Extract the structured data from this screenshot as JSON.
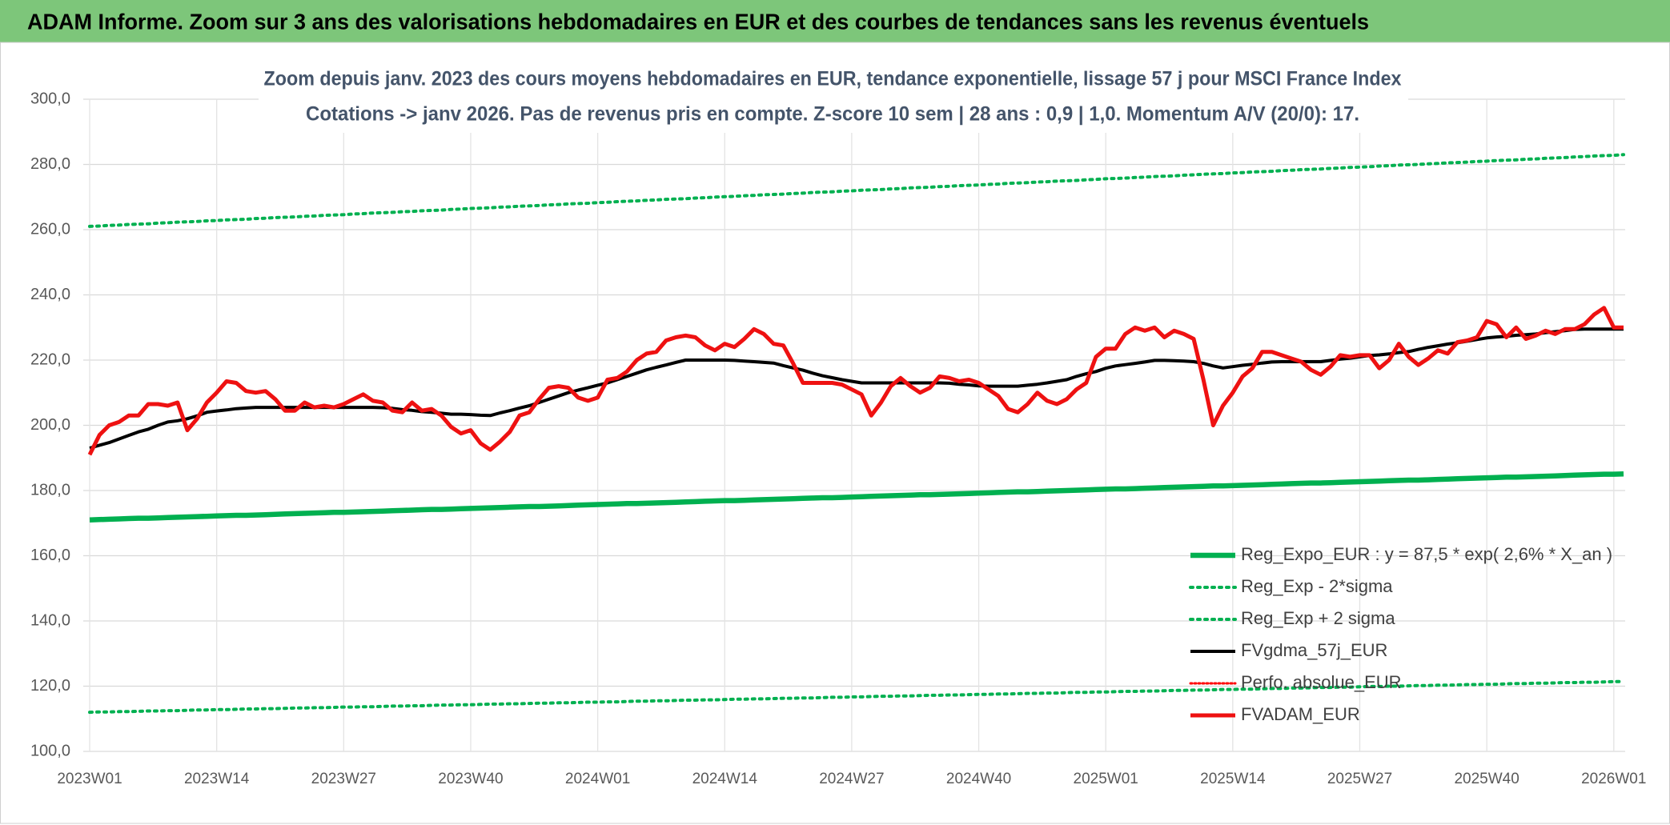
{
  "chart_data": {
    "type": "line",
    "title": "ADAM Informe. Zoom sur 3 ans des valorisations hebdomadaires en EUR et des courbes de tendances sans les revenus éventuels",
    "subtitle": [
      "Zoom depuis janv. 2023 des cours moyens hebdomadaires en EUR, tendance exponentielle, lissage 57 j pour MSCI France Index",
      "Cotations -> janv 2026. Pas de revenus pris en compte. Z-score 10 sem | 28 ans : 0,9 | 1,0. Momentum A/V (20/0): 17."
    ],
    "categories": [
      "2023W01",
      null,
      null,
      null,
      null,
      null,
      null,
      null,
      null,
      null,
      null,
      null,
      null,
      "2023W14",
      null,
      null,
      null,
      null,
      null,
      null,
      null,
      null,
      null,
      null,
      null,
      null,
      "2023W27",
      null,
      null,
      null,
      null,
      null,
      null,
      null,
      null,
      null,
      null,
      null,
      null,
      "2023W40",
      null,
      null,
      null,
      null,
      null,
      null,
      null,
      null,
      null,
      null,
      null,
      null,
      "2024W01",
      null,
      null,
      null,
      null,
      null,
      null,
      null,
      null,
      null,
      null,
      null,
      null,
      "2024W14",
      null,
      null,
      null,
      null,
      null,
      null,
      null,
      null,
      null,
      null,
      null,
      null,
      "2024W27",
      null,
      null,
      null,
      null,
      null,
      null,
      null,
      null,
      null,
      null,
      null,
      null,
      "2024W40",
      null,
      null,
      null,
      null,
      null,
      null,
      null,
      null,
      null,
      null,
      null,
      null,
      "2025W01",
      null,
      null,
      null,
      null,
      null,
      null,
      null,
      null,
      null,
      null,
      null,
      null,
      "2025W14",
      null,
      null,
      null,
      null,
      null,
      null,
      null,
      null,
      null,
      null,
      null,
      null,
      "2025W27",
      null,
      null,
      null,
      null,
      null,
      null,
      null,
      null,
      null,
      null,
      null,
      null,
      "2025W40",
      null,
      null,
      null,
      null,
      null,
      null,
      null,
      null,
      null,
      null,
      null,
      null,
      "2026W01",
      null
    ],
    "ylim": [
      100,
      300
    ],
    "yticks": [
      {
        "value": 100,
        "label": "100,0"
      },
      {
        "value": 120,
        "label": "120,0"
      },
      {
        "value": 140,
        "label": "140,0"
      },
      {
        "value": 160,
        "label": "160,0"
      },
      {
        "value": 180,
        "label": "180,0"
      },
      {
        "value": 200,
        "label": "200,0"
      },
      {
        "value": 220,
        "label": "220,0"
      },
      {
        "value": 240,
        "label": "240,0"
      },
      {
        "value": 260,
        "label": "260,0"
      },
      {
        "value": 280,
        "label": "280,0"
      },
      {
        "value": 300,
        "label": "300,0"
      }
    ],
    "grid": true,
    "legend": "lower-right",
    "series": [
      {
        "name": "Reg_Expo_EUR : y = 87,5 * exp( 2,6% *  X_an )",
        "color": "#00b050",
        "style": "solid",
        "values": [
          171,
          171.1,
          171.2,
          171.3,
          171.4,
          171.5,
          171.5,
          171.6,
          171.7,
          171.8,
          171.9,
          172,
          172.1,
          172.2,
          172.3,
          172.4,
          172.4,
          172.5,
          172.6,
          172.7,
          172.8,
          172.9,
          173,
          173.1,
          173.2,
          173.3,
          173.3,
          173.4,
          173.5,
          173.6,
          173.7,
          173.8,
          173.9,
          174,
          174.1,
          174.2,
          174.2,
          174.3,
          174.4,
          174.5,
          174.6,
          174.7,
          174.8,
          174.9,
          175,
          175.1,
          175.1,
          175.2,
          175.3,
          175.4,
          175.5,
          175.6,
          175.7,
          175.8,
          175.9,
          176,
          176,
          176.1,
          176.2,
          176.3,
          176.4,
          176.5,
          176.6,
          176.7,
          176.8,
          176.9,
          176.9,
          177,
          177.1,
          177.2,
          177.3,
          177.4,
          177.5,
          177.6,
          177.7,
          177.8,
          177.8,
          177.9,
          178,
          178.1,
          178.2,
          178.3,
          178.4,
          178.5,
          178.6,
          178.7,
          178.7,
          178.8,
          178.9,
          179,
          179.1,
          179.2,
          179.3,
          179.4,
          179.5,
          179.6,
          179.6,
          179.7,
          179.8,
          179.9,
          180,
          180.1,
          180.2,
          180.3,
          180.4,
          180.5,
          180.5,
          180.6,
          180.7,
          180.8,
          180.9,
          181,
          181.1,
          181.2,
          181.3,
          181.4,
          181.4,
          181.5,
          181.6,
          181.7,
          181.8,
          181.9,
          182,
          182.1,
          182.2,
          182.3,
          182.3,
          182.4,
          182.5,
          182.6,
          182.7,
          182.8,
          182.9,
          183,
          183.1,
          183.2,
          183.2,
          183.3,
          183.4,
          183.5,
          183.6,
          183.7,
          183.8,
          183.9,
          184,
          184.1,
          184.1,
          184.2,
          184.3,
          184.4,
          184.5,
          184.6,
          184.7,
          184.8,
          184.9,
          185,
          185,
          185.1
        ]
      },
      {
        "name": "Reg_Exp - 2*sigma",
        "color": "#00b050",
        "style": "dotted",
        "values": [
          112,
          112.1,
          112.1,
          112.2,
          112.2,
          112.3,
          112.4,
          112.4,
          112.5,
          112.5,
          112.6,
          112.7,
          112.7,
          112.8,
          112.8,
          112.9,
          113,
          113,
          113.1,
          113.1,
          113.2,
          113.3,
          113.3,
          113.4,
          113.4,
          113.5,
          113.6,
          113.6,
          113.7,
          113.7,
          113.8,
          113.9,
          113.9,
          114,
          114,
          114.1,
          114.2,
          114.2,
          114.3,
          114.3,
          114.4,
          114.5,
          114.5,
          114.6,
          114.6,
          114.7,
          114.8,
          114.8,
          114.9,
          114.9,
          115,
          115.1,
          115.1,
          115.2,
          115.2,
          115.3,
          115.4,
          115.4,
          115.5,
          115.5,
          115.6,
          115.7,
          115.7,
          115.8,
          115.8,
          115.9,
          116,
          116,
          116.1,
          116.1,
          116.2,
          116.3,
          116.3,
          116.4,
          116.4,
          116.5,
          116.6,
          116.6,
          116.7,
          116.7,
          116.8,
          116.9,
          116.9,
          117,
          117,
          117.1,
          117.2,
          117.2,
          117.3,
          117.3,
          117.4,
          117.5,
          117.5,
          117.6,
          117.6,
          117.7,
          117.8,
          117.8,
          117.9,
          117.9,
          118,
          118.1,
          118.1,
          118.2,
          118.2,
          118.3,
          118.4,
          118.4,
          118.5,
          118.5,
          118.6,
          118.7,
          118.7,
          118.8,
          118.8,
          118.9,
          119,
          119,
          119.1,
          119.1,
          119.2,
          119.3,
          119.3,
          119.4,
          119.4,
          119.5,
          119.6,
          119.6,
          119.7,
          119.7,
          119.8,
          119.9,
          119.9,
          120,
          120,
          120.1,
          120.2,
          120.2,
          120.3,
          120.3,
          120.4,
          120.5,
          120.5,
          120.6,
          120.6,
          120.7,
          120.8,
          120.8,
          120.9,
          120.9,
          121,
          121.1,
          121.1,
          121.2,
          121.2,
          121.3,
          121.4,
          121.4
        ]
      },
      {
        "name": "Reg_Exp + 2 sigma",
        "color": "#00b050",
        "style": "dotted",
        "values": [
          261,
          261.1,
          261.3,
          261.4,
          261.6,
          261.7,
          261.8,
          262,
          262.1,
          262.3,
          262.4,
          262.5,
          262.7,
          262.8,
          263,
          263.1,
          263.2,
          263.4,
          263.5,
          263.7,
          263.8,
          263.9,
          264.1,
          264.2,
          264.4,
          264.5,
          264.6,
          264.8,
          264.9,
          265.1,
          265.2,
          265.3,
          265.5,
          265.6,
          265.8,
          265.9,
          266,
          266.2,
          266.3,
          266.5,
          266.6,
          266.7,
          266.9,
          267,
          267.2,
          267.3,
          267.4,
          267.6,
          267.7,
          267.9,
          268,
          268.1,
          268.3,
          268.4,
          268.6,
          268.7,
          268.8,
          269,
          269.1,
          269.3,
          269.4,
          269.5,
          269.7,
          269.8,
          270,
          270.1,
          270.2,
          270.4,
          270.5,
          270.7,
          270.8,
          270.9,
          271.1,
          271.2,
          271.4,
          271.5,
          271.6,
          271.8,
          271.9,
          272.1,
          272.2,
          272.3,
          272.5,
          272.6,
          272.8,
          272.9,
          273,
          273.2,
          273.3,
          273.5,
          273.6,
          273.7,
          273.9,
          274,
          274.2,
          274.3,
          274.4,
          274.6,
          274.7,
          274.9,
          275,
          275.1,
          275.3,
          275.4,
          275.6,
          275.7,
          275.8,
          276,
          276.1,
          276.3,
          276.4,
          276.5,
          276.7,
          276.8,
          277,
          277.1,
          277.2,
          277.4,
          277.5,
          277.7,
          277.8,
          277.9,
          278.1,
          278.2,
          278.4,
          278.5,
          278.6,
          278.8,
          278.9,
          279.1,
          279.2,
          279.3,
          279.5,
          279.6,
          279.8,
          279.9,
          280,
          280.2,
          280.3,
          280.5,
          280.6,
          280.7,
          280.9,
          281,
          281.2,
          281.3,
          281.4,
          281.6,
          281.7,
          281.9,
          282,
          282.1,
          282.3,
          282.4,
          282.6,
          282.7,
          282.8,
          283
        ]
      },
      {
        "name": "FVgdma_57j_EUR",
        "color": "#000000",
        "style": "solid",
        "values": [
          193,
          193.9,
          194.7,
          195.8,
          196.9,
          198,
          198.8,
          200,
          201,
          201.4,
          202,
          202.9,
          204,
          204.4,
          204.7,
          205.1,
          205.3,
          205.5,
          205.5,
          205.5,
          205.5,
          205.5,
          205.5,
          205.5,
          205.5,
          205.5,
          205.5,
          205.5,
          205.5,
          205.5,
          205.4,
          205.2,
          204.8,
          204.6,
          204.2,
          204,
          203.7,
          203.4,
          203.4,
          203.3,
          203.1,
          203,
          203.8,
          204.5,
          205.3,
          206,
          207,
          208,
          209,
          210,
          210.8,
          211.5,
          212.3,
          213,
          214,
          215,
          216,
          217,
          217.8,
          218.5,
          219.3,
          220,
          220,
          220,
          220,
          220,
          219.9,
          219.7,
          219.5,
          219.3,
          219.1,
          218.3,
          217.6,
          216.9,
          216,
          215.2,
          214.6,
          214,
          213.5,
          213,
          213,
          213,
          213,
          213,
          213,
          213,
          213,
          213,
          212.9,
          212.6,
          212.4,
          212.1,
          212,
          212,
          212,
          212,
          212.3,
          212.6,
          213,
          213.5,
          214,
          215,
          215.8,
          216.5,
          217.5,
          218.2,
          218.6,
          219,
          219.4,
          219.9,
          219.9,
          219.8,
          219.7,
          219.5,
          219,
          218.2,
          217.6,
          218,
          218.4,
          218.7,
          219.1,
          219.4,
          219.5,
          219.5,
          219.5,
          219.5,
          219.5,
          219.9,
          220.3,
          220.6,
          221,
          221.4,
          221.6,
          221.9,
          222.3,
          222.6,
          223.3,
          223.9,
          224.4,
          224.9,
          225.3,
          225.8,
          226.3,
          226.8,
          227.1,
          227.3,
          227.6,
          227.8,
          228,
          228.4,
          228.7,
          229,
          229.4,
          229.5,
          229.5,
          229.5,
          229.5,
          229.5
        ]
      },
      {
        "name": "Perfo. absolue_EUR",
        "color": "#ff0000",
        "style": "dotted",
        "values": [
          null,
          null,
          null,
          null,
          null,
          null,
          null,
          null,
          null,
          null,
          null,
          null,
          null,
          null,
          null,
          null,
          null,
          null,
          null,
          null,
          null,
          null,
          null,
          null,
          null,
          null,
          null,
          null,
          null,
          null,
          null,
          null,
          null,
          null,
          null,
          null,
          null,
          null,
          null,
          null,
          null,
          null,
          null,
          null,
          null,
          null,
          null,
          null,
          null,
          null,
          null,
          null,
          null,
          null,
          null,
          null,
          null,
          null,
          null,
          null,
          null,
          null,
          null,
          null,
          null,
          null,
          null,
          null,
          null,
          null,
          null,
          null,
          null,
          null,
          null,
          null,
          null,
          null,
          null,
          null,
          null,
          null,
          null,
          null,
          null,
          null,
          null,
          null,
          null,
          null,
          null,
          null,
          null,
          null,
          null,
          null,
          null,
          null,
          null,
          null,
          null,
          null,
          null,
          null,
          null,
          null,
          null,
          null,
          null,
          null,
          null,
          null,
          null,
          null,
          null,
          null,
          null,
          null,
          null,
          null,
          null,
          null,
          null,
          null,
          null,
          null,
          null,
          null,
          null,
          null,
          null,
          null,
          null,
          null,
          null,
          null,
          null,
          null,
          null,
          null,
          null,
          null,
          null,
          null,
          null,
          null,
          null,
          null,
          null,
          null,
          null,
          null,
          null,
          null,
          null,
          null,
          null,
          null
        ]
      },
      {
        "name": "FVADAM_EUR",
        "color": "#ee1111",
        "style": "solid",
        "values": [
          191,
          197,
          200,
          201,
          203,
          203,
          206.5,
          206.5,
          206,
          207,
          198.5,
          202,
          207,
          210,
          213.5,
          213,
          210.5,
          210,
          210.5,
          208,
          204.5,
          204.5,
          207,
          205.5,
          206,
          205.5,
          206.5,
          208,
          209.5,
          207.5,
          207,
          204.5,
          204,
          207,
          204.5,
          205,
          203,
          199.5,
          197.5,
          198.5,
          194.5,
          192.5,
          195,
          198,
          203,
          204,
          208,
          211.5,
          212,
          211.5,
          208.5,
          207.5,
          208.5,
          214,
          214.5,
          216.5,
          220,
          222,
          222.5,
          226,
          227,
          227.5,
          227,
          224.5,
          223,
          225,
          224,
          226.5,
          229.5,
          228,
          225,
          224.5,
          219,
          213,
          213,
          213,
          213,
          212.5,
          211,
          209.5,
          203,
          207,
          212,
          214.5,
          212,
          210,
          211.5,
          215,
          214.5,
          213.5,
          214,
          213,
          211,
          209,
          205,
          204,
          206.5,
          210,
          207.5,
          206.5,
          208,
          211,
          213,
          221,
          223.5,
          223.5,
          228,
          230,
          229,
          230,
          227,
          229,
          228,
          226.5,
          214,
          200,
          206,
          210,
          215,
          217.5,
          222.5,
          222.5,
          221.5,
          220.5,
          219.5,
          217,
          215.5,
          218,
          221.5,
          221,
          221.5,
          221.5,
          217.5,
          220,
          225,
          221,
          218.5,
          220.5,
          223,
          222,
          225.5,
          226,
          227,
          232,
          231,
          227,
          230,
          226.5,
          227.5,
          229,
          228,
          229.5,
          229.5,
          231,
          234,
          236,
          230,
          230
        ]
      }
    ]
  }
}
